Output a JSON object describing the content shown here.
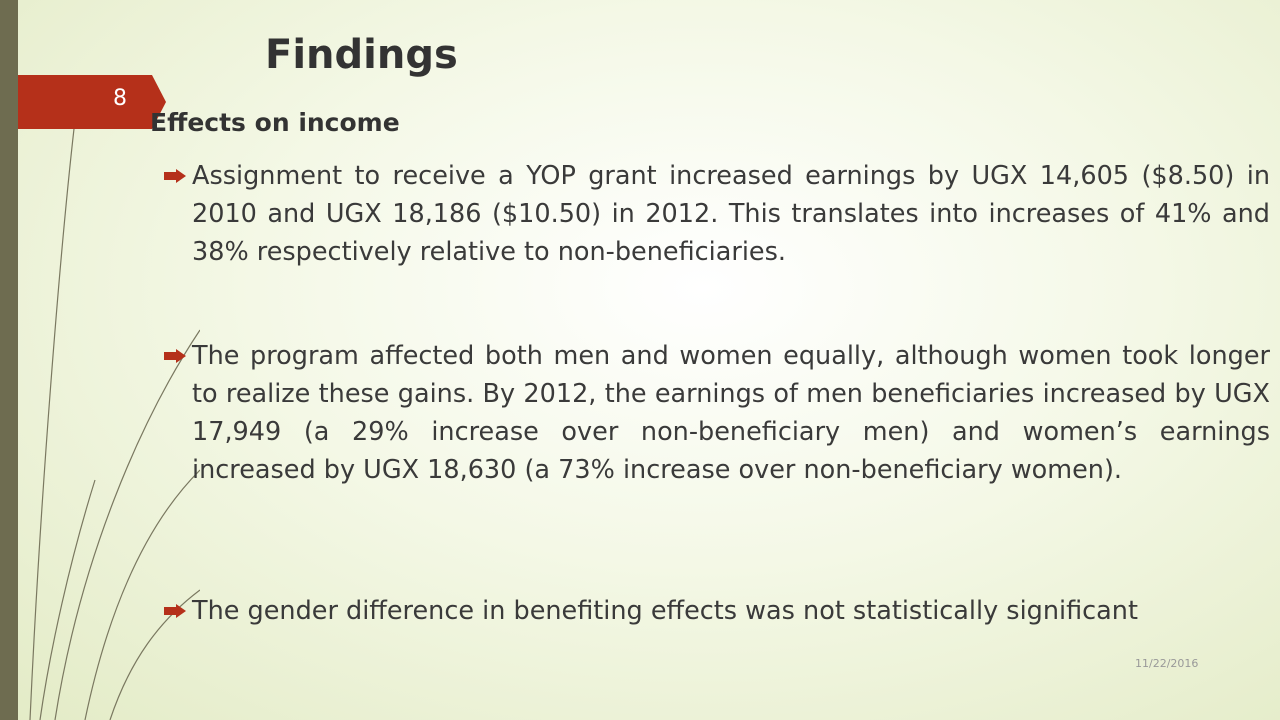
{
  "header": {
    "title": "Findings"
  },
  "slide_number": "8",
  "heading": "Effects on income",
  "bullets": [
    "Assignment to receive a YOP grant increased earnings by UGX 14,605 ($8.50) in 2010 and UGX 18,186 ($10.50) in 2012. This translates into increases of 41% and 38% respectively relative to non-beneficiaries.",
    "The program affected both men and women equally, although women took longer to realize these gains. By 2012, the earnings of men beneficiaries increased by UGX 17,949 (a 29% increase over non-beneficiary men) and women’s earnings increased by UGX 18,630 (a 73% increase over non-beneficiary women).",
    "The gender difference in benefiting effects was not statistically significant"
  ],
  "date": "11/22/2016"
}
